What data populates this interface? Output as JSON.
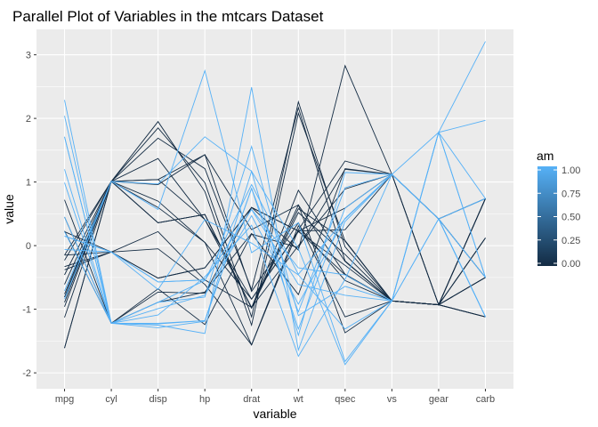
{
  "chart_data": {
    "type": "line",
    "subtype": "parallel-coordinates",
    "title": "Parallel Plot of Variables in the mtcars Dataset",
    "xlabel": "variable",
    "ylabel": "value",
    "categories": [
      "mpg",
      "cyl",
      "disp",
      "hp",
      "drat",
      "wt",
      "qsec",
      "vs",
      "gear",
      "carb"
    ],
    "ylim": [
      -2.25,
      3.4
    ],
    "yticks": [
      -2,
      -1,
      0,
      1,
      2,
      3
    ],
    "grid": true,
    "legend": {
      "title": "am",
      "position": "right",
      "ticks": [
        "0.00",
        "0.25",
        "0.50",
        "0.75",
        "1.00"
      ],
      "low_color": "#132B43",
      "high_color": "#56B1F7"
    },
    "series": [
      {
        "am": 1,
        "values": [
          0.15,
          -0.1,
          -0.57,
          -0.54,
          0.57,
          -0.61,
          -0.78,
          -0.87,
          0.42,
          0.74
        ]
      },
      {
        "am": 1,
        "values": [
          0.15,
          -0.1,
          -0.57,
          -0.54,
          0.57,
          -0.35,
          -0.46,
          -0.87,
          0.42,
          0.74
        ]
      },
      {
        "am": 1,
        "values": [
          0.45,
          -1.22,
          -0.99,
          -0.78,
          0.47,
          -0.92,
          0.43,
          1.12,
          0.42,
          -1.12
        ]
      },
      {
        "am": 0,
        "values": [
          0.22,
          -0.1,
          0.22,
          -0.54,
          -0.97,
          -0.0,
          0.89,
          1.12,
          -0.93,
          -1.12
        ]
      },
      {
        "am": 0,
        "values": [
          -0.23,
          1.01,
          1.04,
          0.41,
          -0.84,
          0.23,
          -0.46,
          -0.87,
          -0.93,
          -0.5
        ]
      },
      {
        "am": 0,
        "values": [
          -0.33,
          -0.1,
          -0.05,
          -0.61,
          -1.56,
          0.25,
          1.33,
          1.12,
          -0.93,
          -1.12
        ]
      },
      {
        "am": 0,
        "values": [
          -0.96,
          1.01,
          1.04,
          1.43,
          -0.72,
          0.36,
          -1.12,
          -0.87,
          -0.93,
          0.74
        ]
      },
      {
        "am": 0,
        "values": [
          0.72,
          -1.22,
          -0.68,
          -1.24,
          0.18,
          -0.03,
          1.2,
          1.12,
          0.42,
          -0.5
        ]
      },
      {
        "am": 0,
        "values": [
          0.45,
          -1.22,
          -0.73,
          -0.75,
          0.6,
          -0.07,
          2.83,
          1.12,
          0.42,
          -0.5
        ]
      },
      {
        "am": 0,
        "values": [
          -0.15,
          -0.1,
          -0.51,
          -0.35,
          0.6,
          0.23,
          0.25,
          1.12,
          0.42,
          0.74
        ]
      },
      {
        "am": 0,
        "values": [
          -0.38,
          -0.1,
          -0.51,
          -0.35,
          0.6,
          0.23,
          0.59,
          1.12,
          0.42,
          0.74
        ]
      },
      {
        "am": 0,
        "values": [
          -0.61,
          1.01,
          0.36,
          0.49,
          -0.98,
          0.87,
          -0.25,
          -0.87,
          -0.93,
          0.12
        ]
      },
      {
        "am": 0,
        "values": [
          -0.46,
          1.01,
          0.36,
          0.49,
          -0.98,
          0.52,
          -0.14,
          -0.87,
          -0.93,
          0.12
        ]
      },
      {
        "am": 0,
        "values": [
          -0.81,
          1.01,
          0.36,
          0.49,
          -0.98,
          0.58,
          0.08,
          -0.87,
          -0.93,
          0.12
        ]
      },
      {
        "am": 0,
        "values": [
          -1.61,
          1.01,
          1.95,
          0.85,
          -1.25,
          2.08,
          0.07,
          -0.87,
          -0.93,
          0.74
        ]
      },
      {
        "am": 0,
        "values": [
          -1.61,
          1.01,
          1.85,
          0.99,
          -1.12,
          2.26,
          -0.02,
          -0.87,
          -0.93,
          0.74
        ]
      },
      {
        "am": 0,
        "values": [
          -0.89,
          1.01,
          1.69,
          1.21,
          -0.69,
          2.17,
          -0.24,
          -0.87,
          -0.93,
          0.74
        ]
      },
      {
        "am": 1,
        "values": [
          2.04,
          -1.22,
          -1.23,
          -1.18,
          0.9,
          -1.04,
          0.91,
          1.12,
          0.42,
          -1.12
        ]
      },
      {
        "am": 1,
        "values": [
          1.71,
          -1.22,
          -1.25,
          -1.38,
          2.49,
          -1.64,
          0.38,
          1.12,
          0.42,
          -0.5
        ]
      },
      {
        "am": 1,
        "values": [
          2.29,
          -1.22,
          -1.29,
          -1.19,
          1.17,
          -1.41,
          1.15,
          1.12,
          0.42,
          -1.12
        ]
      },
      {
        "am": 0,
        "values": [
          0.23,
          -1.22,
          -0.89,
          -0.73,
          0.19,
          -0.77,
          1.21,
          1.12,
          -0.93,
          -1.12
        ]
      },
      {
        "am": 0,
        "values": [
          -0.76,
          1.01,
          0.7,
          0.05,
          -1.56,
          0.31,
          -0.55,
          -0.87,
          -0.93,
          -0.5
        ]
      },
      {
        "am": 0,
        "values": [
          -0.81,
          1.01,
          0.6,
          0.05,
          -0.84,
          0.22,
          -0.31,
          -0.87,
          -0.93,
          -0.5
        ]
      },
      {
        "am": 0,
        "values": [
          -1.13,
          1.01,
          0.96,
          1.43,
          0.25,
          0.64,
          -1.37,
          -0.87,
          -0.93,
          0.74
        ]
      },
      {
        "am": 0,
        "values": [
          -0.15,
          1.01,
          1.37,
          0.41,
          -0.97,
          0.64,
          -0.45,
          -0.87,
          -0.93,
          -0.5
        ]
      },
      {
        "am": 1,
        "values": [
          1.2,
          -1.22,
          -1.22,
          -1.18,
          0.9,
          -1.31,
          0.59,
          1.12,
          0.42,
          -1.12
        ]
      },
      {
        "am": 1,
        "values": [
          0.99,
          -1.22,
          -0.89,
          -0.81,
          1.56,
          -1.1,
          -0.64,
          -0.87,
          1.78,
          -0.5
        ]
      },
      {
        "am": 1,
        "values": [
          1.71,
          -1.22,
          -1.09,
          -0.49,
          0.32,
          -1.74,
          -0.53,
          1.12,
          1.78,
          -0.5
        ]
      },
      {
        "am": 1,
        "values": [
          -0.71,
          1.01,
          0.97,
          1.71,
          1.17,
          -0.05,
          -1.87,
          -0.87,
          1.78,
          0.74
        ]
      },
      {
        "am": 1,
        "values": [
          -0.06,
          -0.1,
          -0.69,
          0.41,
          0.04,
          -0.46,
          -1.31,
          -0.87,
          1.78,
          1.97
        ]
      },
      {
        "am": 1,
        "values": [
          -0.84,
          1.01,
          0.57,
          2.75,
          -0.11,
          0.36,
          -1.82,
          -0.87,
          1.78,
          3.21
        ]
      },
      {
        "am": 1,
        "values": [
          0.22,
          -1.22,
          -0.89,
          -0.55,
          0.96,
          -0.45,
          0.42,
          1.12,
          0.42,
          -0.5
        ]
      }
    ]
  }
}
